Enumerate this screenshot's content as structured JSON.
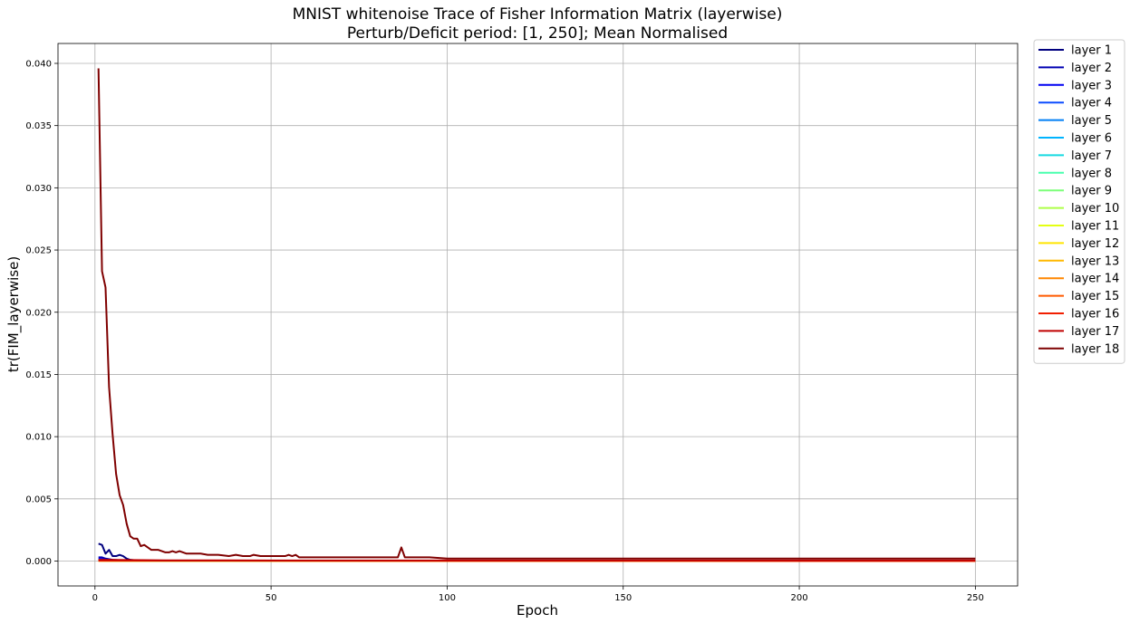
{
  "chart_data": {
    "type": "line",
    "title": "MNIST whitenoise Trace of Fisher Information Matrix (layerwise)",
    "subtitle": "Perturb/Deficit period: [1, 250]; Mean Normalised",
    "xlabel": "Epoch",
    "ylabel": "tr(FIM_layerwise)",
    "xlim": [
      -10.5,
      262
    ],
    "ylim": [
      -0.002,
      0.0416
    ],
    "xticks": [
      0,
      50,
      100,
      150,
      200,
      250
    ],
    "xtick_labels": [
      "0",
      "50",
      "100",
      "150",
      "200",
      "250"
    ],
    "yticks": [
      0.0,
      0.005,
      0.01,
      0.015,
      0.02,
      0.025,
      0.03,
      0.035,
      0.04
    ],
    "ytick_labels": [
      "0.000",
      "0.005",
      "0.010",
      "0.015",
      "0.020",
      "0.025",
      "0.030",
      "0.035",
      "0.040"
    ],
    "grid": true,
    "legend_position": "outside-right-top",
    "series": [
      {
        "name": "layer 1",
        "color": "#00007f",
        "points": [
          [
            1,
            0.0014
          ],
          [
            2,
            0.0013
          ],
          [
            3,
            0.0006
          ],
          [
            4,
            0.0009
          ],
          [
            5,
            0.0004
          ],
          [
            6,
            0.0004
          ],
          [
            7,
            0.0005
          ],
          [
            8,
            0.0004
          ],
          [
            9,
            0.0002
          ],
          [
            10,
            0.0001
          ],
          [
            12,
            5e-05
          ],
          [
            15,
            2e-05
          ],
          [
            30,
            1e-05
          ],
          [
            250,
            1e-05
          ]
        ]
      },
      {
        "name": "layer 2",
        "color": "#0000b2",
        "points": [
          [
            1,
            0.0003
          ],
          [
            2,
            0.0003
          ],
          [
            3,
            0.0002
          ],
          [
            5,
            0.0001
          ],
          [
            8,
            5e-05
          ],
          [
            12,
            2e-05
          ],
          [
            250,
            1e-05
          ]
        ]
      },
      {
        "name": "layer 3",
        "color": "#0000f1",
        "points": [
          [
            1,
            0.0002
          ],
          [
            3,
            0.0001
          ],
          [
            8,
            3e-05
          ],
          [
            250,
            1e-05
          ]
        ]
      },
      {
        "name": "layer 4",
        "color": "#0c4cff",
        "points": [
          [
            1,
            0.00012
          ],
          [
            5,
            4e-05
          ],
          [
            250,
            1e-05
          ]
        ]
      },
      {
        "name": "layer 5",
        "color": "#007ff5",
        "points": [
          [
            1,
            0.0001
          ],
          [
            5,
            3e-05
          ],
          [
            250,
            1e-05
          ]
        ]
      },
      {
        "name": "layer 6",
        "color": "#00b4ff",
        "points": [
          [
            1,
            8e-05
          ],
          [
            5,
            2e-05
          ],
          [
            250,
            1e-05
          ]
        ]
      },
      {
        "name": "layer 7",
        "color": "#16d9e1",
        "points": [
          [
            1,
            6e-05
          ],
          [
            5,
            2e-05
          ],
          [
            250,
            1e-05
          ]
        ]
      },
      {
        "name": "layer 8",
        "color": "#48ffad",
        "points": [
          [
            1,
            5e-05
          ],
          [
            5,
            2e-05
          ],
          [
            250,
            1e-05
          ]
        ]
      },
      {
        "name": "layer 9",
        "color": "#7cff79",
        "points": [
          [
            1,
            4e-05
          ],
          [
            5,
            1e-05
          ],
          [
            250,
            1e-05
          ]
        ]
      },
      {
        "name": "layer 10",
        "color": "#adff48",
        "points": [
          [
            1,
            4e-05
          ],
          [
            5,
            1e-05
          ],
          [
            250,
            1e-05
          ]
        ]
      },
      {
        "name": "layer 11",
        "color": "#e4ff13",
        "points": [
          [
            1,
            3e-05
          ],
          [
            250,
            1e-05
          ]
        ]
      },
      {
        "name": "layer 12",
        "color": "#ffe500",
        "points": [
          [
            1,
            3e-05
          ],
          [
            250,
            1e-05
          ]
        ]
      },
      {
        "name": "layer 13",
        "color": "#ffb900",
        "points": [
          [
            1,
            3e-05
          ],
          [
            250,
            1e-05
          ]
        ]
      },
      {
        "name": "layer 14",
        "color": "#ff8600",
        "points": [
          [
            1,
            3e-05
          ],
          [
            250,
            1e-05
          ]
        ]
      },
      {
        "name": "layer 15",
        "color": "#ff5a00",
        "points": [
          [
            1,
            3e-05
          ],
          [
            250,
            1e-05
          ]
        ]
      },
      {
        "name": "layer 16",
        "color": "#f11e00",
        "points": [
          [
            1,
            4e-05
          ],
          [
            250,
            2e-05
          ]
        ]
      },
      {
        "name": "layer 17",
        "color": "#c00000",
        "points": [
          [
            1,
            0.0001
          ],
          [
            3,
            0.0001
          ],
          [
            10,
            8e-05
          ],
          [
            20,
            6e-05
          ],
          [
            50,
            5e-05
          ],
          [
            100,
            5e-05
          ],
          [
            150,
            5e-05
          ],
          [
            200,
            5e-05
          ],
          [
            250,
            5e-05
          ]
        ]
      },
      {
        "name": "layer 18",
        "color": "#7f0000",
        "points": [
          [
            1,
            0.0396
          ],
          [
            2,
            0.0233
          ],
          [
            3,
            0.022
          ],
          [
            4,
            0.014
          ],
          [
            5,
            0.0102
          ],
          [
            6,
            0.007
          ],
          [
            7,
            0.0053
          ],
          [
            8,
            0.0045
          ],
          [
            9,
            0.003
          ],
          [
            10,
            0.002
          ],
          [
            11,
            0.0018
          ],
          [
            12,
            0.0018
          ],
          [
            13,
            0.0012
          ],
          [
            14,
            0.0013
          ],
          [
            15,
            0.0011
          ],
          [
            16,
            0.0009
          ],
          [
            17,
            0.0009
          ],
          [
            18,
            0.0009
          ],
          [
            19,
            0.0008
          ],
          [
            20,
            0.0007
          ],
          [
            21,
            0.0007
          ],
          [
            22,
            0.0008
          ],
          [
            23,
            0.0007
          ],
          [
            24,
            0.0008
          ],
          [
            25,
            0.0007
          ],
          [
            26,
            0.0006
          ],
          [
            28,
            0.0006
          ],
          [
            30,
            0.0006
          ],
          [
            32,
            0.0005
          ],
          [
            35,
            0.0005
          ],
          [
            38,
            0.0004
          ],
          [
            40,
            0.0005
          ],
          [
            42,
            0.0004
          ],
          [
            44,
            0.0004
          ],
          [
            45,
            0.0005
          ],
          [
            47,
            0.0004
          ],
          [
            50,
            0.0004
          ],
          [
            52,
            0.0004
          ],
          [
            54,
            0.0004
          ],
          [
            55,
            0.0005
          ],
          [
            56,
            0.0004
          ],
          [
            57,
            0.0005
          ],
          [
            58,
            0.0003
          ],
          [
            60,
            0.0003
          ],
          [
            62,
            0.0003
          ],
          [
            65,
            0.0003
          ],
          [
            70,
            0.0003
          ],
          [
            75,
            0.0003
          ],
          [
            80,
            0.0003
          ],
          [
            85,
            0.0003
          ],
          [
            86,
            0.0003
          ],
          [
            87,
            0.0011
          ],
          [
            88,
            0.0003
          ],
          [
            90,
            0.0003
          ],
          [
            95,
            0.0003
          ],
          [
            100,
            0.0002
          ],
          [
            110,
            0.0002
          ],
          [
            120,
            0.0002
          ],
          [
            130,
            0.0002
          ],
          [
            140,
            0.0002
          ],
          [
            150,
            0.0002
          ],
          [
            160,
            0.0002
          ],
          [
            170,
            0.0002
          ],
          [
            180,
            0.0002
          ],
          [
            190,
            0.0002
          ],
          [
            200,
            0.0002
          ],
          [
            210,
            0.0002
          ],
          [
            220,
            0.0002
          ],
          [
            230,
            0.0002
          ],
          [
            240,
            0.0002
          ],
          [
            250,
            0.0002
          ]
        ]
      }
    ]
  }
}
